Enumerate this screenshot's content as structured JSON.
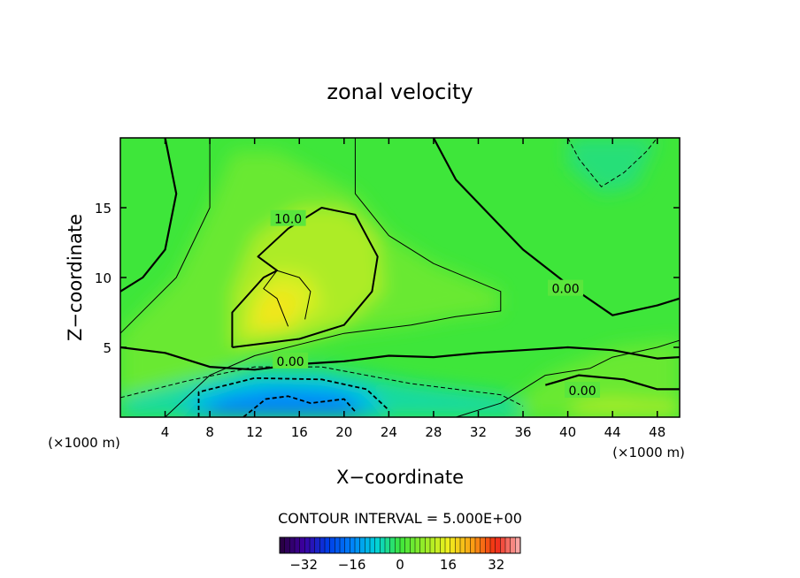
{
  "chart_data": {
    "type": "heatmap",
    "title": "zonal velocity",
    "xlabel": "X−coordinate",
    "ylabel": "Z−coordinate",
    "x_unit_label": "(×1000 m)",
    "x_unit_label_right": "(×1000 m)",
    "xlim": [
      0,
      50
    ],
    "ylim": [
      0,
      20
    ],
    "x_ticks": [
      4,
      8,
      12,
      16,
      20,
      24,
      28,
      32,
      36,
      40,
      44,
      48
    ],
    "y_ticks": [
      5,
      10,
      15
    ],
    "contour_interval_label": "CONTOUR INTERVAL = 5.000E+00",
    "contour_interval": 5,
    "contour_labels": [
      {
        "text": "10.0",
        "x": 15,
        "z": 14.2
      },
      {
        "text": "0.00",
        "x": 15.2,
        "z": 4.0
      },
      {
        "text": "0.00",
        "x": 39.8,
        "z": 9.2
      },
      {
        "text": "0.00",
        "x": 41.3,
        "z": 1.9
      }
    ],
    "colorbar": {
      "range": [
        -40,
        40
      ],
      "ticks": [
        -32,
        -16,
        0,
        16,
        32
      ],
      "tick_labels": [
        "−32",
        "−16",
        "0",
        "16",
        "32"
      ]
    },
    "field_features": [
      {
        "kind": "maximum",
        "x": 14,
        "z": 8,
        "value": 17
      },
      {
        "kind": "maximum",
        "x": 15,
        "z": 12,
        "value": 11
      },
      {
        "kind": "minimum",
        "x": 14,
        "z": 0.8,
        "value": -17
      },
      {
        "kind": "minimum",
        "x": 43,
        "z": 18,
        "value": -4
      },
      {
        "kind": "maximum",
        "x": 43.5,
        "z": 0.2,
        "value": 10
      }
    ]
  }
}
